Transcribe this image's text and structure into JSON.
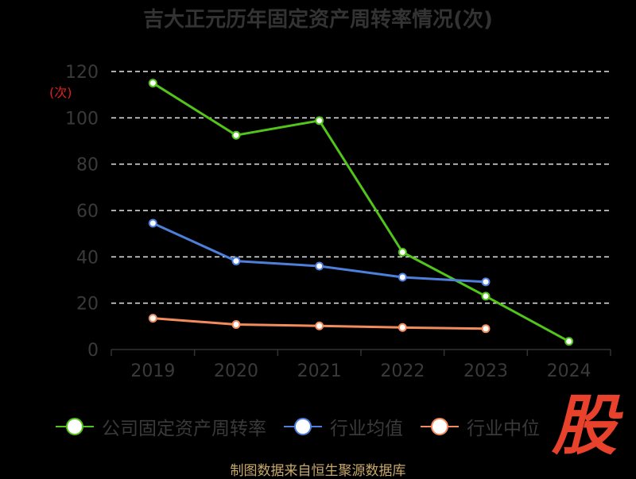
{
  "title": "吉大正元历年固定资产周转率情况(次)",
  "source": "制图数据来自恒生聚源数据库",
  "watermark": "股",
  "chart_data": {
    "type": "line",
    "categories": [
      "2019",
      "2020",
      "2021",
      "2022",
      "2023",
      "2024"
    ],
    "ylabel": "(次)",
    "ylim": [
      0,
      120
    ],
    "yticks": [
      0,
      20,
      40,
      60,
      80,
      100,
      120
    ],
    "grid": true,
    "legend_position": "bottom",
    "series": [
      {
        "name": "公司固定资产周转率",
        "color": "#52c41a",
        "values": [
          115,
          92.5,
          98.8,
          42,
          23,
          3.5
        ]
      },
      {
        "name": "行业均值",
        "color": "#4e7fdb",
        "values": [
          54.5,
          38.2,
          36,
          31.2,
          29.2,
          null
        ]
      },
      {
        "name": "行业中位",
        "color": "#f28c5c",
        "values": [
          13.5,
          10.8,
          10.2,
          9.5,
          9,
          null
        ]
      }
    ]
  }
}
